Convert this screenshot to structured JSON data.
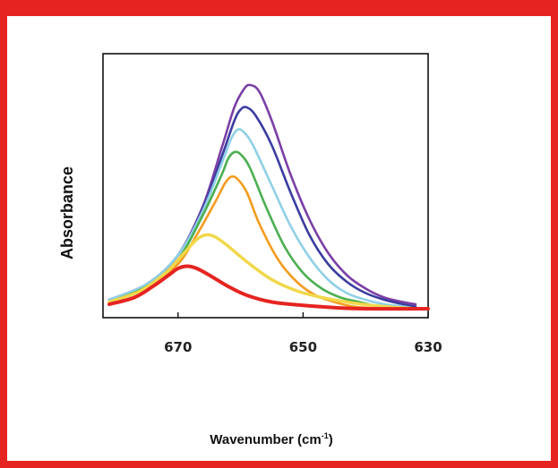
{
  "chart_data": {
    "type": "line",
    "title": "",
    "xlabel": "Wavenumber (cm",
    "xlabel_sup": "-1",
    "xlabel_tail": ")",
    "ylabel": "Absorbance",
    "xlim": [
      682,
      630
    ],
    "ylim": [
      0,
      1.0
    ],
    "x_reversed": true,
    "y_ticks_shown": false,
    "grid": false,
    "x_ticks": [
      670,
      650,
      630
    ],
    "x_tick_labels": [
      "670",
      "650",
      "630"
    ],
    "series": [
      {
        "color": "#7b3fa6",
        "points": [
          [
            681,
            0.04
          ],
          [
            675,
            0.11
          ],
          [
            670,
            0.24
          ],
          [
            666,
            0.46
          ],
          [
            663,
            0.72
          ],
          [
            661,
            0.9
          ],
          [
            659.5,
            0.98
          ],
          [
            658.5,
            1.0
          ],
          [
            657,
            0.97
          ],
          [
            655,
            0.84
          ],
          [
            652,
            0.6
          ],
          [
            649,
            0.4
          ],
          [
            646,
            0.25
          ],
          [
            643,
            0.15
          ],
          [
            640,
            0.09
          ],
          [
            637,
            0.05
          ],
          [
            634,
            0.03
          ],
          [
            632,
            0.02
          ]
        ]
      },
      {
        "color": "#3b3da0",
        "points": [
          [
            681,
            0.04
          ],
          [
            675,
            0.11
          ],
          [
            670,
            0.24
          ],
          [
            666,
            0.45
          ],
          [
            663,
            0.68
          ],
          [
            661,
            0.84
          ],
          [
            660,
            0.89
          ],
          [
            659,
            0.9
          ],
          [
            657.5,
            0.86
          ],
          [
            655,
            0.73
          ],
          [
            652,
            0.52
          ],
          [
            649,
            0.33
          ],
          [
            646,
            0.2
          ],
          [
            643,
            0.12
          ],
          [
            640,
            0.07
          ],
          [
            637,
            0.04
          ],
          [
            634,
            0.02
          ],
          [
            632,
            0.01
          ]
        ]
      },
      {
        "color": "#8fd0e6",
        "points": [
          [
            681,
            0.04
          ],
          [
            675,
            0.11
          ],
          [
            670,
            0.24
          ],
          [
            666,
            0.44
          ],
          [
            663,
            0.65
          ],
          [
            661.5,
            0.76
          ],
          [
            660.5,
            0.8
          ],
          [
            659.5,
            0.79
          ],
          [
            658,
            0.73
          ],
          [
            655,
            0.55
          ],
          [
            652,
            0.37
          ],
          [
            649,
            0.23
          ],
          [
            646,
            0.13
          ],
          [
            643,
            0.07
          ],
          [
            640,
            0.04
          ],
          [
            637,
            0.02
          ],
          [
            634,
            0.01
          ],
          [
            632,
            0.0
          ]
        ]
      },
      {
        "color": "#4caf50",
        "points": [
          [
            681,
            0.03
          ],
          [
            675,
            0.1
          ],
          [
            670,
            0.22
          ],
          [
            666,
            0.42
          ],
          [
            663,
            0.6
          ],
          [
            662,
            0.67
          ],
          [
            661,
            0.7
          ],
          [
            660,
            0.69
          ],
          [
            658.5,
            0.63
          ],
          [
            656,
            0.46
          ],
          [
            653,
            0.28
          ],
          [
            650,
            0.16
          ],
          [
            647,
            0.09
          ],
          [
            644,
            0.05
          ],
          [
            641,
            0.03
          ],
          [
            638,
            0.01
          ],
          [
            635,
            0.0
          ]
        ]
      },
      {
        "color": "#f39c1f",
        "points": [
          [
            681,
            0.03
          ],
          [
            675,
            0.09
          ],
          [
            670,
            0.2
          ],
          [
            667,
            0.33
          ],
          [
            664,
            0.48
          ],
          [
            662.5,
            0.56
          ],
          [
            661.5,
            0.59
          ],
          [
            660.5,
            0.58
          ],
          [
            659,
            0.52
          ],
          [
            657,
            0.38
          ],
          [
            654,
            0.22
          ],
          [
            651,
            0.12
          ],
          [
            648,
            0.06
          ],
          [
            645,
            0.03
          ],
          [
            642,
            0.01
          ],
          [
            638,
            0.0
          ]
        ]
      },
      {
        "color": "#f1d84a",
        "points": [
          [
            681,
            0.03
          ],
          [
            676,
            0.08
          ],
          [
            672,
            0.16
          ],
          [
            669,
            0.25
          ],
          [
            667,
            0.31
          ],
          [
            665.5,
            0.33
          ],
          [
            664,
            0.32
          ],
          [
            662,
            0.28
          ],
          [
            659,
            0.21
          ],
          [
            655,
            0.13
          ],
          [
            651,
            0.08
          ],
          [
            647,
            0.05
          ],
          [
            643,
            0.03
          ],
          [
            639,
            0.015
          ],
          [
            635,
            0.005
          ],
          [
            632,
            0.0
          ]
        ]
      },
      {
        "color": "#e52421",
        "points": [
          [
            681,
            0.02
          ],
          [
            677,
            0.05
          ],
          [
            674,
            0.1
          ],
          [
            671.5,
            0.15
          ],
          [
            670,
            0.18
          ],
          [
            668.5,
            0.19
          ],
          [
            667,
            0.18
          ],
          [
            665,
            0.15
          ],
          [
            662,
            0.1
          ],
          [
            659,
            0.06
          ],
          [
            655,
            0.03
          ],
          [
            650,
            0.015
          ],
          [
            645,
            0.005
          ],
          [
            640,
            0.0
          ],
          [
            630,
            0.0
          ]
        ]
      }
    ]
  }
}
